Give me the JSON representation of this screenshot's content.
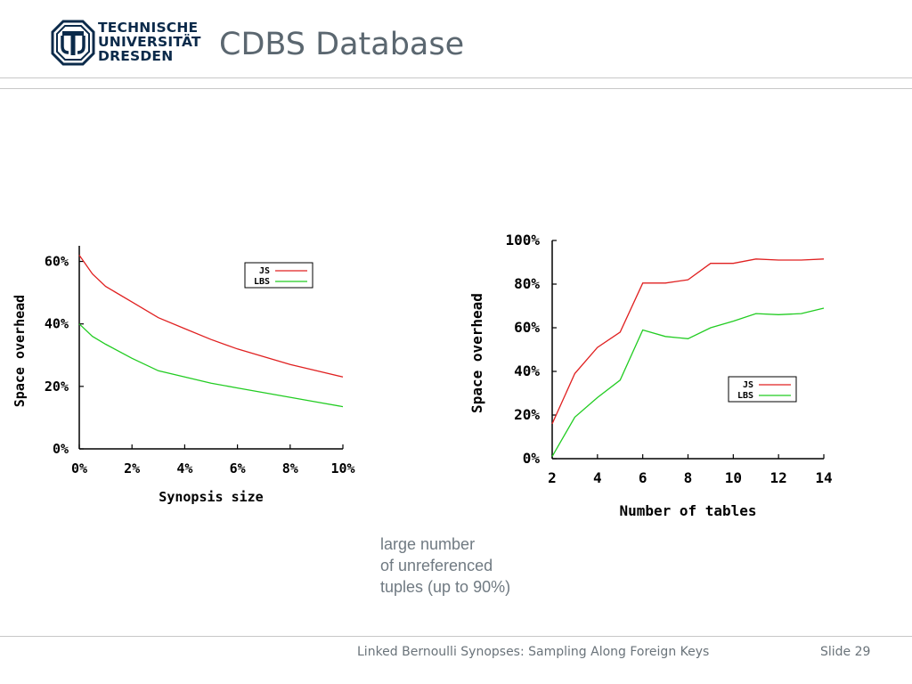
{
  "header": {
    "logo_lines": [
      "TECHNISCHE",
      "UNIVERSITÄT",
      "DRESDEN"
    ],
    "title": "CDBS Database"
  },
  "note": {
    "lines": [
      "large number",
      "of unreferenced",
      "tuples (up to 90%)"
    ]
  },
  "footer": {
    "text": "Linked Bernoulli Synopses: Sampling Along Foreign Keys",
    "slide": "Slide 29"
  },
  "colors": {
    "js": "#e02020",
    "lbs": "#22cc22",
    "logo": "#0b2a4a"
  },
  "chart_data": [
    {
      "type": "line",
      "xlabel": "Synopsis size",
      "ylabel": "Space overhead",
      "xlim": [
        0,
        10
      ],
      "ylim": [
        0,
        65
      ],
      "xticks": [
        0,
        2,
        4,
        6,
        8,
        10
      ],
      "xtick_labels": [
        "0%",
        "2%",
        "4%",
        "6%",
        "8%",
        "10%"
      ],
      "yticks": [
        0,
        20,
        40,
        60
      ],
      "ytick_labels": [
        "0%",
        "20%",
        "40%",
        "60%"
      ],
      "legend": "top-right",
      "series": [
        {
          "name": "JS",
          "color": "#e02020",
          "x": [
            0,
            0.5,
            1,
            2,
            3,
            4,
            5,
            6,
            7,
            8,
            9,
            10
          ],
          "y": [
            62,
            56,
            52,
            47,
            42,
            38.5,
            35,
            32,
            29.5,
            27,
            25,
            23
          ]
        },
        {
          "name": "LBS",
          "color": "#22cc22",
          "x": [
            0,
            0.5,
            1,
            2,
            3,
            4,
            5,
            6,
            7,
            8,
            9,
            10
          ],
          "y": [
            40,
            36,
            33.5,
            29,
            25,
            23,
            21,
            19.5,
            18,
            16.5,
            15,
            13.5
          ]
        }
      ]
    },
    {
      "type": "line",
      "xlabel": "Number of tables",
      "ylabel": "Space overhead",
      "xlim": [
        2,
        14
      ],
      "ylim": [
        0,
        100
      ],
      "xticks": [
        2,
        4,
        6,
        8,
        10,
        12,
        14
      ],
      "xtick_labels": [
        "2",
        "4",
        "6",
        "8",
        "10",
        "12",
        "14"
      ],
      "yticks": [
        0,
        20,
        40,
        60,
        80,
        100
      ],
      "ytick_labels": [
        "0%",
        "20%",
        "40%",
        "60%",
        "80%",
        "100%"
      ],
      "legend": "right",
      "series": [
        {
          "name": "JS",
          "color": "#e02020",
          "x": [
            2,
            3,
            4,
            5,
            6,
            7,
            8,
            9,
            10,
            11,
            12,
            13,
            14
          ],
          "y": [
            16,
            39,
            51,
            58,
            80.5,
            80.5,
            82,
            89.5,
            89.5,
            91.5,
            91,
            91,
            91.5
          ]
        },
        {
          "name": "LBS",
          "color": "#22cc22",
          "x": [
            2,
            3,
            4,
            5,
            6,
            7,
            8,
            9,
            10,
            11,
            12,
            13,
            14
          ],
          "y": [
            1,
            19,
            28,
            36,
            59,
            56,
            55,
            60,
            63,
            66.5,
            66,
            66.5,
            69
          ]
        }
      ]
    }
  ]
}
